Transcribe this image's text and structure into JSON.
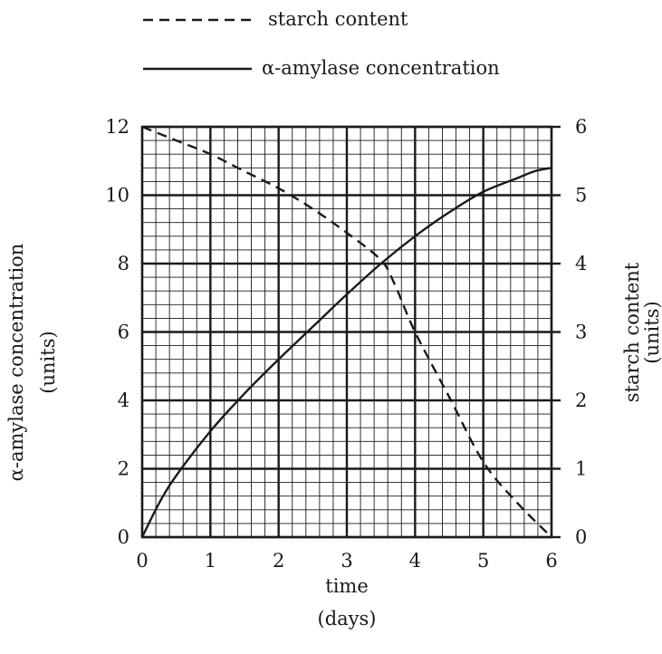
{
  "chart_data": {
    "type": "line",
    "legend": {
      "placement": "top",
      "entries": [
        {
          "label": "starch content",
          "style": "dashed"
        },
        {
          "label": "α-amylase concentration",
          "style": "solid"
        }
      ]
    },
    "xaxis": {
      "label_line1": "time",
      "label_line2": "(days)",
      "range": [
        0,
        6
      ],
      "ticks": [
        "0",
        "1",
        "2",
        "3",
        "4",
        "5",
        "6"
      ]
    },
    "yaxis_left": {
      "label_line1": "α-amylase concentration",
      "label_line2": "(units)",
      "range": [
        0,
        12
      ],
      "ticks": [
        "0",
        "2",
        "4",
        "6",
        "8",
        "10",
        "12"
      ]
    },
    "yaxis_right": {
      "label_line1": "starch content",
      "label_line2": "(units)",
      "range": [
        0,
        6
      ],
      "ticks": [
        "0",
        "1",
        "2",
        "3",
        "4",
        "5",
        "6"
      ]
    },
    "grid": true,
    "series": [
      {
        "name": "α-amylase concentration",
        "axis": "left",
        "style": "solid",
        "x": [
          0,
          0.25,
          0.5,
          1,
          1.5,
          2,
          2.5,
          3,
          3.5,
          4,
          4.5,
          5,
          5.5,
          5.75,
          6
        ],
        "y": [
          0,
          1.0,
          1.8,
          3.1,
          4.2,
          5.2,
          6.15,
          7.1,
          8.0,
          8.8,
          9.5,
          10.1,
          10.5,
          10.7,
          10.8
        ]
      },
      {
        "name": "starch content",
        "axis": "right",
        "style": "dashed",
        "x": [
          0,
          0.5,
          1,
          1.5,
          2,
          2.5,
          3,
          3.5,
          3.7,
          4,
          4.5,
          5,
          5.5,
          6
        ],
        "y": [
          6.0,
          5.8,
          5.6,
          5.35,
          5.1,
          4.8,
          4.45,
          4.05,
          3.7,
          3.0,
          2.05,
          1.1,
          0.5,
          0
        ]
      }
    ]
  }
}
